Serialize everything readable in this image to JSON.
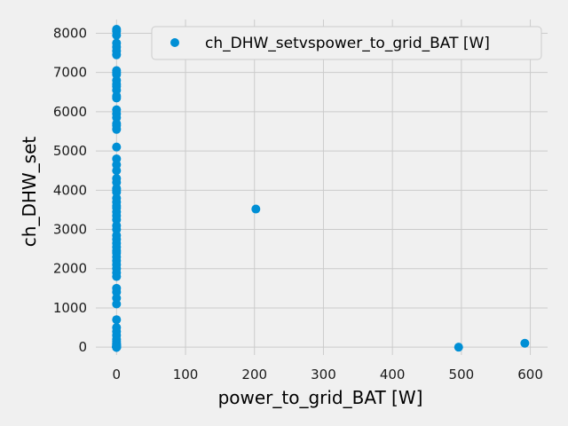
{
  "chart_data": {
    "type": "scatter",
    "xlabel": "power_to_grid_BAT [W]",
    "ylabel": "ch_DHW_set",
    "xlim": [
      -30,
      625
    ],
    "ylim": [
      -200,
      8350
    ],
    "xticks": [
      0,
      100,
      200,
      300,
      400,
      500,
      600
    ],
    "yticks": [
      0,
      1000,
      2000,
      3000,
      4000,
      5000,
      6000,
      7000,
      8000
    ],
    "grid": true,
    "legend_position": "top-right",
    "series": [
      {
        "name": "ch_DHW_setvspower_to_grid_BAT [W]",
        "color": "#008fd5",
        "x": [
          0,
          0,
          0,
          0,
          0,
          0,
          0,
          0,
          0,
          0,
          0,
          0,
          0,
          0,
          0,
          0,
          0,
          0,
          0,
          0,
          0,
          0,
          0,
          0,
          0,
          0,
          0,
          0,
          0,
          0,
          0,
          0,
          0,
          0,
          0,
          0,
          0,
          0,
          0,
          0,
          0,
          0,
          0,
          0,
          0,
          0,
          0,
          0,
          0,
          0,
          0,
          0,
          0,
          0,
          0,
          0,
          0,
          0,
          0,
          0,
          0,
          0,
          0,
          0,
          0,
          0,
          0,
          0,
          0,
          0,
          0,
          0,
          0,
          0,
          0,
          0,
          0,
          0,
          0,
          0,
          0,
          0,
          0,
          0,
          0,
          0,
          202,
          496,
          592
        ],
        "y": [
          8100,
          8050,
          7950,
          7750,
          7650,
          7550,
          7450,
          7050,
          7000,
          6950,
          6800,
          6700,
          6650,
          6550,
          6400,
          6350,
          6050,
          5950,
          5850,
          5700,
          5650,
          5550,
          5100,
          4800,
          4650,
          4500,
          4300,
          4200,
          4050,
          4000,
          3950,
          3800,
          3700,
          3600,
          3550,
          3450,
          3350,
          3250,
          3100,
          3000,
          2850,
          2750,
          2650,
          2550,
          2450,
          2400,
          2300,
          2200,
          2100,
          2000,
          1900,
          1800,
          1500,
          1400,
          1250,
          1100,
          700,
          500,
          400,
          300,
          200,
          150,
          100,
          80,
          60,
          40,
          30,
          20,
          15,
          10,
          5,
          0,
          0,
          0,
          0,
          0,
          0,
          0,
          0,
          0,
          0,
          0,
          0,
          0,
          0,
          0,
          3520,
          0,
          100
        ]
      }
    ]
  }
}
